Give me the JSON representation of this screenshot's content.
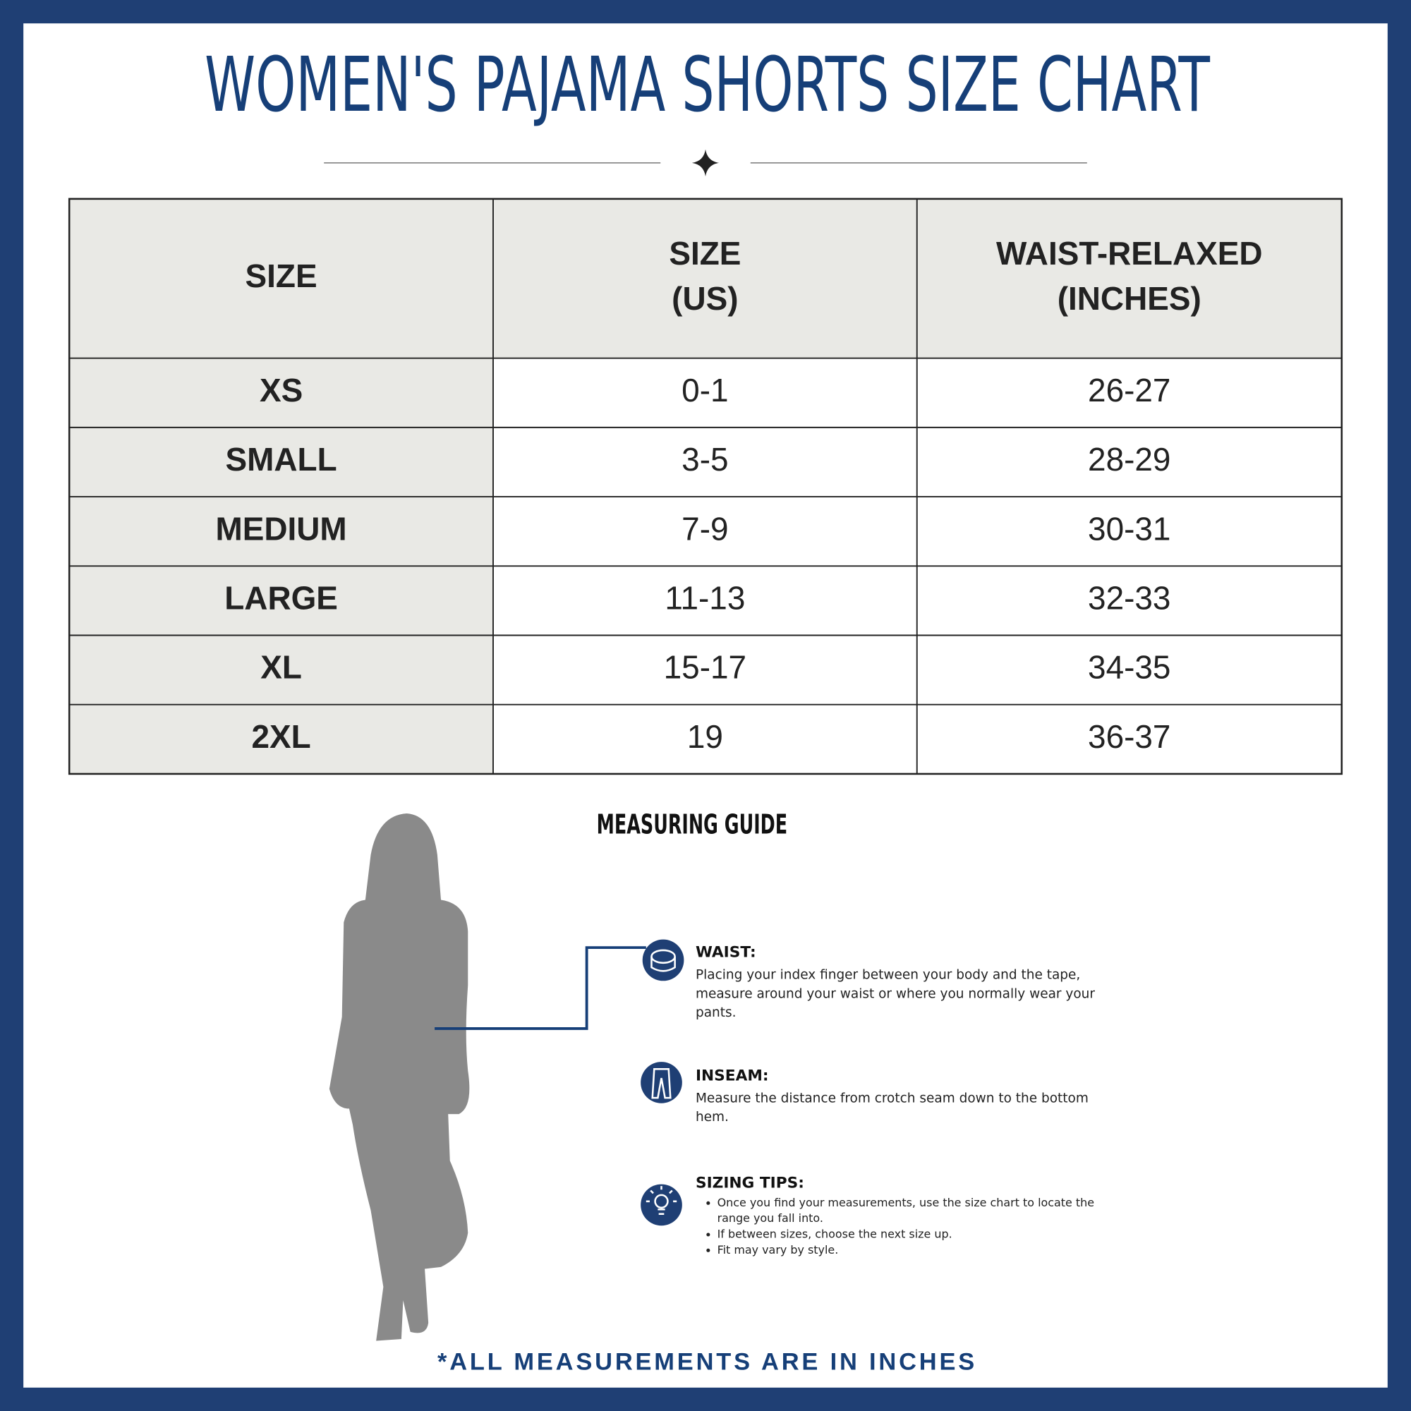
{
  "header": {
    "title": "WOMEN'S PAJAMA SHORTS SIZE CHART"
  },
  "table": {
    "columns": [
      [
        "SIZE"
      ],
      [
        "SIZE",
        "(US)"
      ],
      [
        "WAIST-RELAXED",
        "(INCHES)"
      ]
    ],
    "rows": [
      [
        "XS",
        "0-1",
        "26-27"
      ],
      [
        "SMALL",
        "3-5",
        "28-29"
      ],
      [
        "MEDIUM",
        "7-9",
        "30-31"
      ],
      [
        "LARGE",
        "11-13",
        "32-33"
      ],
      [
        "XL",
        "15-17",
        "34-35"
      ],
      [
        "2XL",
        "19",
        "36-37"
      ]
    ]
  },
  "guide": {
    "title": "MEASURING GUIDE",
    "items": [
      {
        "label": "WAIST:",
        "lines": [
          "Placing your index finger between your body and the tape,",
          "measure around your waist or where you normally wear your",
          "pants."
        ]
      },
      {
        "label": "INSEAM:",
        "lines": [
          "Measure the distance from crotch seam down to the bottom",
          "hem."
        ]
      },
      {
        "label": "SIZING TIPS:",
        "bullets": [
          [
            "Once you find your measurements, use the size chart to locate the",
            "range you fall into."
          ],
          [
            "If between sizes, choose the next size up."
          ],
          [
            "Fit may vary by style."
          ]
        ]
      }
    ]
  },
  "footer": "*ALL MEASUREMENTS ARE IN INCHES"
}
